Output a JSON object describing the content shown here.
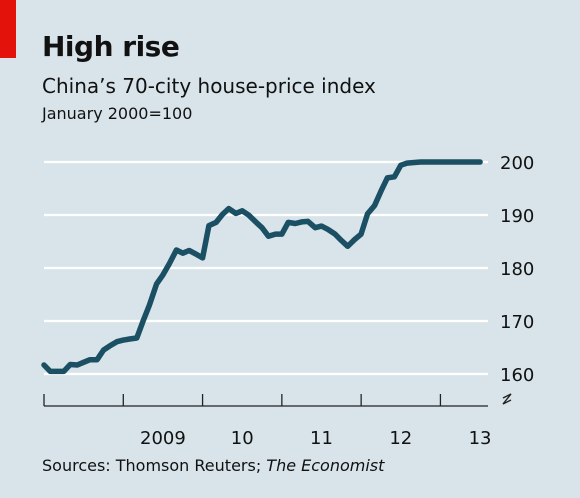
{
  "brand": {
    "accent": "#e3120b",
    "background": "#d8e4ea",
    "line": "#1b4f63"
  },
  "chart_data": {
    "type": "line",
    "title": "High rise",
    "subtitle": "China’s 70-city house-price index",
    "unit": "January 2000=100",
    "ylim": [
      160,
      200
    ],
    "yticks": [
      160,
      170,
      180,
      190,
      200
    ],
    "xlim": [
      2008.0,
      2013.6
    ],
    "xticks": [
      2009,
      2010,
      2011,
      2012,
      2013
    ],
    "xtick_labels": [
      "2009",
      "10",
      "11",
      "12",
      "13"
    ],
    "axis_break": true,
    "grid": true,
    "series": [
      {
        "x": [
          2008.0,
          2008.08,
          2008.17,
          2008.25,
          2008.33,
          2008.42,
          2008.5,
          2008.58,
          2008.67,
          2008.75,
          2008.83,
          2008.92,
          2009.0,
          2009.08,
          2009.17,
          2009.25,
          2009.33,
          2009.42,
          2009.5,
          2009.58,
          2009.67,
          2009.75,
          2009.83,
          2009.92,
          2010.0,
          2010.08,
          2010.17,
          2010.25,
          2010.33,
          2010.42,
          2010.5,
          2010.58,
          2010.67,
          2010.75,
          2010.83,
          2010.92,
          2011.0,
          2011.08,
          2011.17,
          2011.25,
          2011.33,
          2011.42,
          2011.5,
          2011.58,
          2011.67,
          2011.75,
          2011.83,
          2011.92,
          2012.0,
          2012.08,
          2012.17,
          2012.25,
          2012.33,
          2012.42,
          2012.5,
          2012.58,
          2012.67,
          2012.75,
          2012.83,
          2012.92,
          2013.0,
          2013.08,
          2013.17,
          2013.25,
          2013.33,
          2013.42,
          2013.5
        ],
        "values": [
          161.7,
          160.5,
          160.5,
          160.5,
          161.8,
          161.7,
          162.2,
          162.7,
          162.7,
          164.5,
          165.3,
          166.1,
          166.4,
          166.6,
          166.8,
          170.0,
          173.0,
          177.0,
          178.7,
          180.8,
          183.4,
          182.8,
          183.3,
          182.6,
          181.9,
          188.0,
          188.6,
          190.1,
          191.2,
          190.3,
          190.8,
          190.0,
          188.7,
          187.6,
          186.0,
          186.4,
          186.4,
          188.6,
          188.4,
          188.7,
          188.8,
          187.6,
          187.9,
          187.3,
          186.4,
          185.2,
          184.1,
          185.4,
          186.4,
          190.2,
          191.8,
          194.5,
          197.0,
          197.2,
          199.4,
          199.8,
          199.9,
          200.0,
          200.0,
          200.0,
          200.0,
          200.0,
          200.0,
          200.0,
          200.0,
          200.0,
          200.0
        ]
      }
    ]
  },
  "source": {
    "prefix": "Sources: Thomson Reuters; ",
    "publication": "The Economist"
  }
}
